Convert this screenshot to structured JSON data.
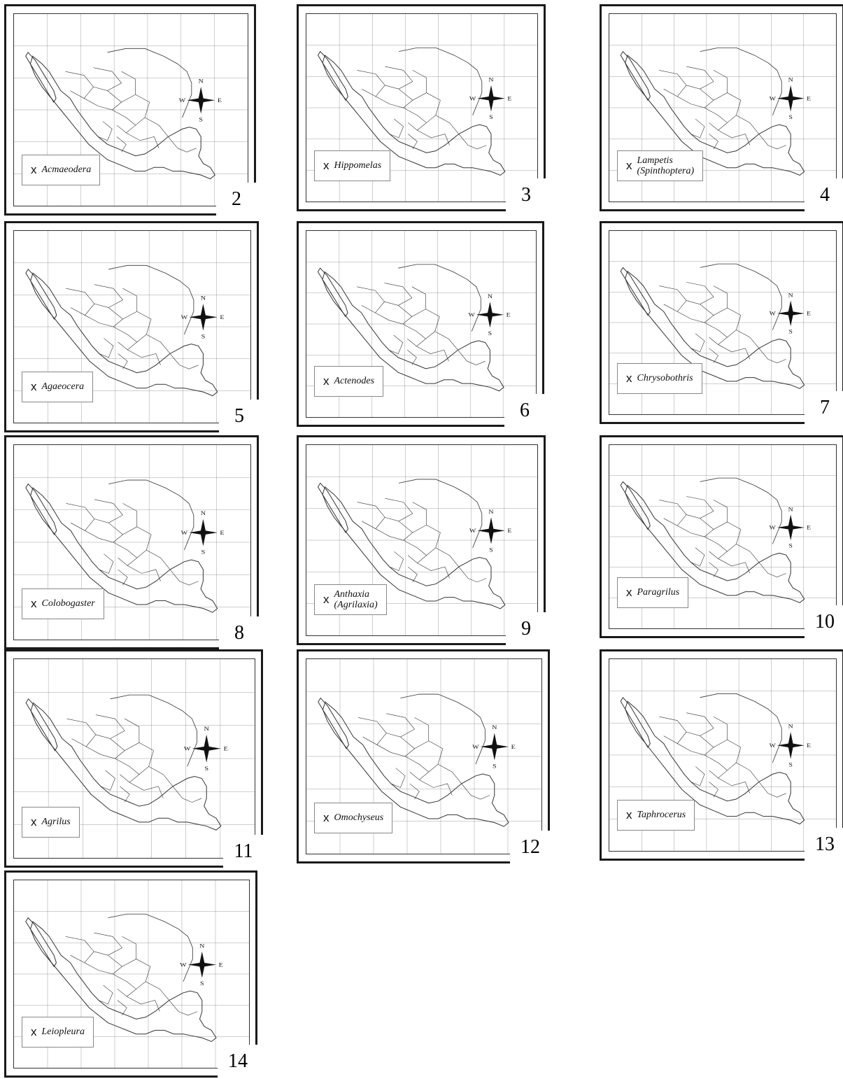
{
  "figure": {
    "compass": {
      "n": "N",
      "s": "S",
      "e": "E",
      "w": "W"
    },
    "marker_symbol": "x",
    "panels": [
      {
        "number": "2",
        "genus": "Acmaeodera",
        "subgenus": ""
      },
      {
        "number": "3",
        "genus": "Hippomelas",
        "subgenus": ""
      },
      {
        "number": "4",
        "genus": "Lampetis",
        "subgenus": "(Spinthoptera)"
      },
      {
        "number": "5",
        "genus": "Agaeocera",
        "subgenus": ""
      },
      {
        "number": "6",
        "genus": "Actenodes",
        "subgenus": ""
      },
      {
        "number": "7",
        "genus": "Chrysobothris",
        "subgenus": ""
      },
      {
        "number": "8",
        "genus": "Colobogaster",
        "subgenus": ""
      },
      {
        "number": "9",
        "genus": "Anthaxia",
        "subgenus": "(Agrilaxia)"
      },
      {
        "number": "10",
        "genus": "Paragrilus",
        "subgenus": ""
      },
      {
        "number": "11",
        "genus": "Agrilus",
        "subgenus": ""
      },
      {
        "number": "12",
        "genus": "Omochyseus",
        "subgenus": ""
      },
      {
        "number": "13",
        "genus": "Taphrocerus",
        "subgenus": ""
      },
      {
        "number": "14",
        "genus": "Leiopleura",
        "subgenus": ""
      }
    ]
  }
}
